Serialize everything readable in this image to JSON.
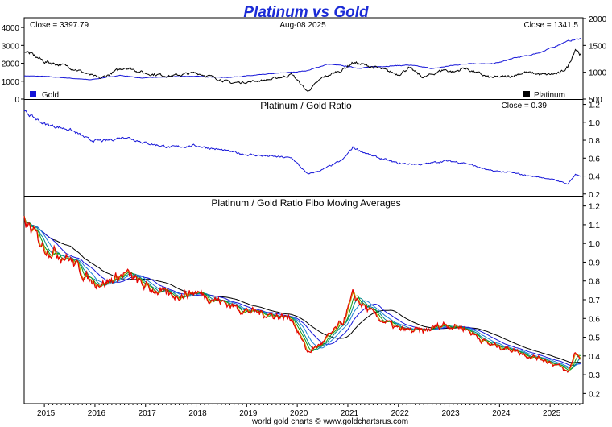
{
  "header": {
    "title": "Platinum vs Gold",
    "footer": "world gold charts © www.goldchartsrus.com",
    "colors": {
      "title": "#1b2bd6",
      "gold_series": "#1515d8",
      "platinum_series": "#000000"
    }
  },
  "chart_data": [
    {
      "type": "line",
      "panel": "price",
      "date_label": "Aug-08  2025",
      "close_left": "Close = 3397.79",
      "close_right": "Close = 1341.5",
      "legend": [
        {
          "name": "Gold",
          "color": "#1515d8",
          "position": "bottom-left"
        },
        {
          "name": "Platinum",
          "color": "#000000",
          "position": "bottom-right"
        }
      ],
      "left_axis": {
        "ticks": [
          "0",
          "1000",
          "2000",
          "3000",
          "4000"
        ],
        "ylim": [
          0,
          4500
        ],
        "series": "Gold"
      },
      "right_axis": {
        "ticks": [
          "500",
          "1000",
          "1500",
          "2000"
        ],
        "ylim": [
          500,
          2000
        ],
        "series": "Platinum"
      },
      "x_ticks": [
        "2015",
        "2016",
        "2017",
        "2018",
        "2019",
        "2020",
        "2021",
        "2022",
        "2023",
        "2024",
        "2025"
      ],
      "series": [
        {
          "name": "Gold",
          "color": "#1515d8",
          "x": [
            2014.6,
            2015.0,
            2015.5,
            2015.9,
            2016.5,
            2016.9,
            2017.5,
            2017.9,
            2018.6,
            2019.0,
            2019.5,
            2019.9,
            2020.2,
            2020.6,
            2020.9,
            2021.2,
            2021.5,
            2022.2,
            2022.7,
            2023.0,
            2023.4,
            2023.8,
            2024.0,
            2024.3,
            2024.6,
            2024.9,
            2025.3,
            2025.6
          ],
          "values": [
            1300,
            1270,
            1170,
            1080,
            1330,
            1180,
            1250,
            1280,
            1210,
            1290,
            1420,
            1500,
            1590,
            1950,
            1860,
            1730,
            1800,
            1900,
            1700,
            1850,
            2000,
            1950,
            2050,
            2300,
            2450,
            2700,
            3200,
            3390
          ]
        },
        {
          "name": "Platinum",
          "color": "#000000",
          "x": [
            2014.6,
            2015.0,
            2015.5,
            2015.9,
            2016.1,
            2016.6,
            2017.0,
            2017.5,
            2018.0,
            2018.4,
            2018.7,
            2019.0,
            2019.5,
            2019.9,
            2020.2,
            2020.5,
            2020.9,
            2021.1,
            2021.5,
            2022.0,
            2022.2,
            2022.5,
            2022.9,
            2023.1,
            2023.3,
            2023.8,
            2024.2,
            2024.5,
            2024.9,
            2025.2,
            2025.35,
            2025.5,
            2025.6
          ],
          "values": [
            1410,
            1200,
            1100,
            950,
            880,
            1100,
            980,
            930,
            990,
            890,
            800,
            820,
            870,
            960,
            640,
            900,
            1050,
            1180,
            1100,
            960,
            1080,
            900,
            1050,
            1000,
            1080,
            900,
            920,
            1000,
            950,
            980,
            1100,
            1450,
            1340
          ]
        }
      ]
    },
    {
      "type": "line",
      "panel": "ratio",
      "title": "Platinum / Gold Ratio",
      "close_label": "Close = 0.39",
      "right_axis": {
        "ticks": [
          "0.2",
          "0.4",
          "0.6",
          "0.8",
          "1.0",
          "1.2"
        ],
        "ylim": [
          0.18,
          1.25
        ]
      },
      "series": [
        {
          "name": "Ratio",
          "color": "#1515d8",
          "x": [
            2014.6,
            2015.0,
            2015.5,
            2015.9,
            2016.2,
            2016.6,
            2017.0,
            2017.5,
            2018.0,
            2018.6,
            2019.0,
            2019.5,
            2019.9,
            2020.2,
            2020.5,
            2020.9,
            2021.1,
            2021.5,
            2022.0,
            2022.5,
            2022.9,
            2023.3,
            2023.8,
            2024.2,
            2024.6,
            2024.9,
            2025.2,
            2025.35,
            2025.5,
            2025.6
          ],
          "values": [
            1.12,
            0.98,
            0.92,
            0.8,
            0.79,
            0.84,
            0.77,
            0.72,
            0.74,
            0.68,
            0.64,
            0.62,
            0.6,
            0.42,
            0.47,
            0.58,
            0.72,
            0.62,
            0.54,
            0.53,
            0.57,
            0.55,
            0.46,
            0.44,
            0.4,
            0.38,
            0.34,
            0.31,
            0.42,
            0.39
          ]
        }
      ]
    },
    {
      "type": "line",
      "panel": "fibo-moving-averages",
      "title": "Platinum / Gold Ratio Fibo Moving Averages",
      "right_axis": {
        "ticks": [
          "0.2",
          "0.3",
          "0.4",
          "0.5",
          "0.6",
          "0.7",
          "0.8",
          "0.9",
          "1.0",
          "1.1",
          "1.2"
        ],
        "ylim": [
          0.15,
          1.25
        ]
      },
      "series_colors": [
        "#e60000",
        "#c8a000",
        "#109910",
        "#008b8b",
        "#1b7fd6",
        "#1515d8",
        "#000000"
      ]
    }
  ]
}
